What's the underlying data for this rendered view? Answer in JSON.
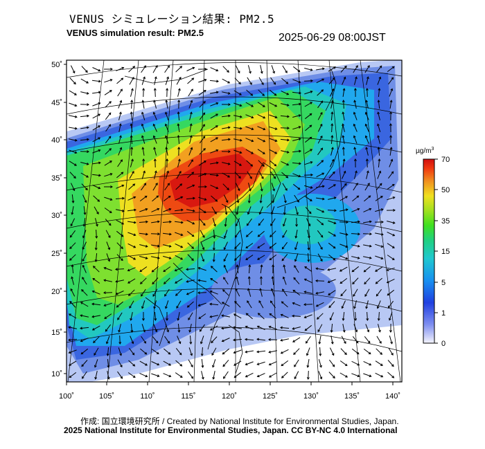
{
  "header": {
    "title_jp": "VENUS シミュレーション結果: PM2.5",
    "title_en": "VENUS simulation result: PM2.5",
    "timestamp": "2025-06-29 08:00JST"
  },
  "map": {
    "variable": "PM2.5",
    "lat_ticks": [
      "50˚",
      "45˚",
      "40˚",
      "35˚",
      "30˚",
      "25˚",
      "20˚",
      "15˚",
      "10˚"
    ],
    "lon_ticks": [
      "100˚",
      "105˚",
      "110˚",
      "115˚",
      "120˚",
      "125˚",
      "130˚",
      "135˚",
      "140˚"
    ],
    "legend": {
      "unit_prefix": "µg/m",
      "unit_sup": "3",
      "levels": [
        "70",
        "50",
        "35",
        "15",
        "5",
        "1",
        "0"
      ],
      "colors": [
        "#e8e8f8",
        "#3050e0",
        "#20a0f0",
        "#20d0b0",
        "#30e040",
        "#90e020",
        "#f0e020",
        "#f09020",
        "#f03010",
        "#d01010"
      ]
    }
  },
  "footer": {
    "credit_line": "作成: 国立環境研究所 / Created by National Institute for Environmental Studies, Japan.",
    "copyright_line": "2025 National Institute for Environmental Studies, Japan. CC BY-NC 4.0 International"
  }
}
